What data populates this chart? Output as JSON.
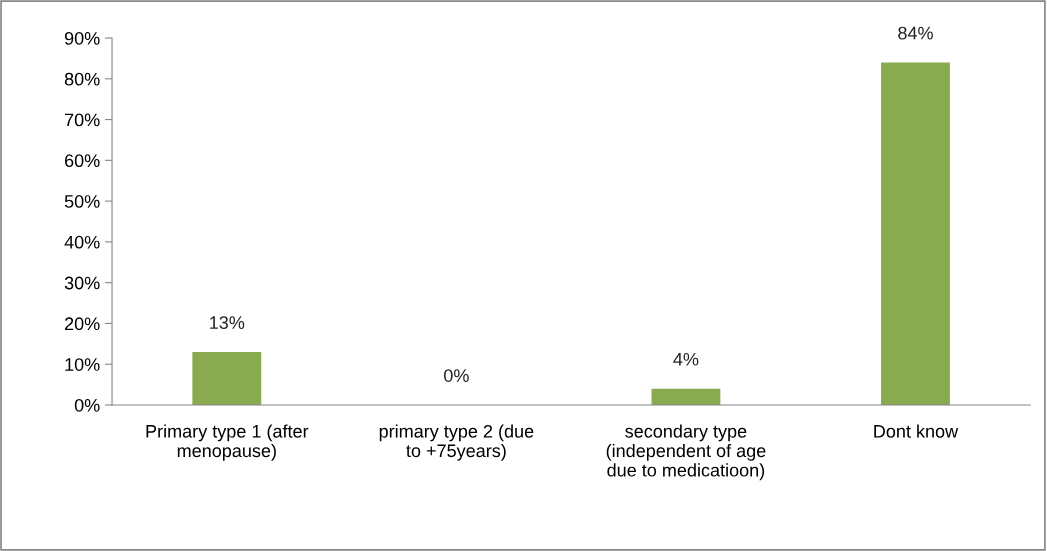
{
  "chart_data": {
    "type": "bar",
    "categories": [
      "Primary type 1 (after\nmenopause)",
      "primary type 2 (due\nto +75years)",
      "secondary type\n(independent of age\ndue to medicatioon)",
      "Dont know"
    ],
    "values": [
      13,
      0,
      4,
      84
    ],
    "value_labels": [
      "13%",
      "0%",
      "4%",
      "84%"
    ],
    "color": "#8aaa4f",
    "ylim": [
      0,
      90
    ],
    "yticks": [
      {
        "value": 0,
        "label": "0%"
      },
      {
        "value": 10,
        "label": "10%"
      },
      {
        "value": 20,
        "label": "20%"
      },
      {
        "value": 30,
        "label": "30%"
      },
      {
        "value": 40,
        "label": "40%"
      },
      {
        "value": 50,
        "label": "50%"
      },
      {
        "value": 60,
        "label": "60%"
      },
      {
        "value": 70,
        "label": "70%"
      },
      {
        "value": 80,
        "label": "80%"
      },
      {
        "value": 90,
        "label": "90%"
      }
    ],
    "grid": false,
    "legend": false
  }
}
